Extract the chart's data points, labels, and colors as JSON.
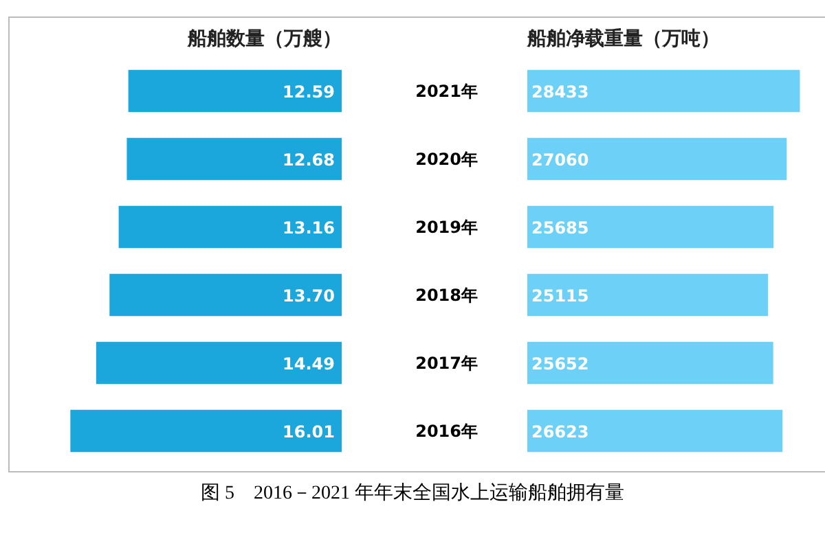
{
  "chart_data": [
    {
      "type": "bar",
      "orientation": "horizontal",
      "title": "船舶数量（万艘）",
      "categories": [
        "2021年",
        "2020年",
        "2019年",
        "2018年",
        "2017年",
        "2016年"
      ],
      "tick_labels": false,
      "values": [
        12.59,
        12.68,
        13.16,
        13.7,
        14.49,
        16.01
      ],
      "value_labels": [
        "12.59",
        "12.68",
        "13.16",
        "13.70",
        "14.49",
        "16.01"
      ],
      "color": "#1ba6dc"
    },
    {
      "type": "bar",
      "orientation": "horizontal",
      "title": "船舶净载重量（万吨）",
      "categories": [
        "2021年",
        "2020年",
        "2019年",
        "2018年",
        "2017年",
        "2016年"
      ],
      "values": [
        28433,
        27060,
        25685,
        25115,
        25652,
        26623
      ],
      "data_labels": true,
      "color": "#6dd0f6",
      "tick_labels": "y",
      "annotations": [
        "图 5　2016－2021 年年末全国水上运输船舶拥有量"
      ]
    }
  ]
}
